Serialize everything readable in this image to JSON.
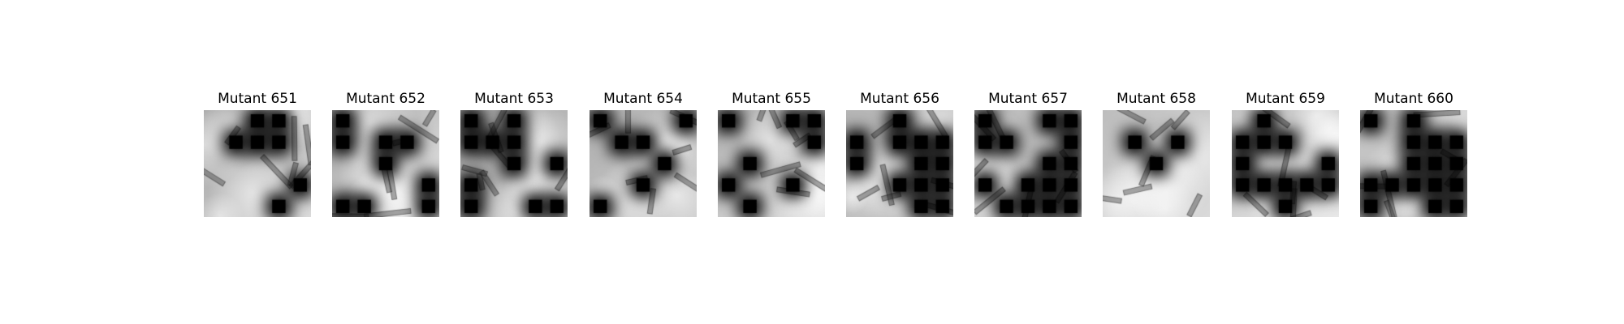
{
  "panels": [
    {
      "title": "Mutant 651",
      "blocks": [
        [
          1,
          1,
          0,
          0,
          1
        ],
        [
          1,
          0,
          0,
          0,
          1
        ],
        [
          1,
          1,
          1,
          1,
          1
        ],
        [
          1,
          1,
          1,
          1,
          0
        ],
        [
          1,
          1,
          1,
          0,
          1
        ]
      ],
      "seed": 651
    },
    {
      "title": "Mutant 652",
      "blocks": [
        [
          0,
          1,
          1,
          1,
          1
        ],
        [
          0,
          1,
          0,
          0,
          1
        ],
        [
          1,
          1,
          0,
          1,
          1
        ],
        [
          1,
          1,
          1,
          1,
          0
        ],
        [
          0,
          0,
          1,
          1,
          0
        ]
      ],
      "seed": 652
    },
    {
      "title": "Mutant 653",
      "blocks": [
        [
          0,
          1,
          0,
          1,
          1
        ],
        [
          0,
          0,
          0,
          1,
          1
        ],
        [
          1,
          1,
          0,
          1,
          0
        ],
        [
          0,
          1,
          1,
          1,
          1
        ],
        [
          0,
          1,
          1,
          0,
          0
        ]
      ],
      "seed": 653
    },
    {
      "title": "Mutant 654",
      "blocks": [
        [
          0,
          1,
          1,
          1,
          0
        ],
        [
          1,
          0,
          0,
          1,
          1
        ],
        [
          1,
          1,
          1,
          0,
          1
        ],
        [
          1,
          1,
          0,
          1,
          1
        ],
        [
          0,
          1,
          1,
          1,
          1
        ]
      ],
      "seed": 654
    },
    {
      "title": "Mutant 655",
      "blocks": [
        [
          0,
          1,
          1,
          0,
          0
        ],
        [
          1,
          1,
          1,
          1,
          0
        ],
        [
          1,
          0,
          1,
          1,
          1
        ],
        [
          0,
          1,
          1,
          0,
          1
        ],
        [
          1,
          0,
          1,
          1,
          1
        ]
      ],
      "seed": 655
    },
    {
      "title": "Mutant 656",
      "blocks": [
        [
          1,
          1,
          0,
          1,
          1
        ],
        [
          0,
          1,
          0,
          0,
          0
        ],
        [
          0,
          1,
          1,
          0,
          0
        ],
        [
          1,
          1,
          0,
          0,
          0
        ],
        [
          1,
          1,
          1,
          0,
          0
        ]
      ],
      "seed": 656
    },
    {
      "title": "Mutant 657",
      "blocks": [
        [
          0,
          1,
          1,
          0,
          0
        ],
        [
          0,
          0,
          1,
          1,
          0
        ],
        [
          1,
          1,
          1,
          0,
          0
        ],
        [
          0,
          1,
          0,
          0,
          0
        ],
        [
          1,
          0,
          0,
          0,
          0
        ]
      ],
      "seed": 657
    },
    {
      "title": "Mutant 658",
      "blocks": [
        [
          1,
          1,
          1,
          1,
          1
        ],
        [
          1,
          0,
          1,
          0,
          1
        ],
        [
          1,
          1,
          0,
          1,
          1
        ],
        [
          1,
          1,
          1,
          1,
          1
        ],
        [
          1,
          1,
          1,
          1,
          1
        ]
      ],
      "seed": 658
    },
    {
      "title": "Mutant 659",
      "blocks": [
        [
          1,
          0,
          1,
          1,
          1
        ],
        [
          0,
          0,
          0,
          1,
          1
        ],
        [
          0,
          1,
          1,
          1,
          0
        ],
        [
          0,
          0,
          0,
          0,
          0
        ],
        [
          1,
          1,
          0,
          1,
          1
        ]
      ],
      "seed": 659
    },
    {
      "title": "Mutant 660",
      "blocks": [
        [
          0,
          1,
          0,
          1,
          1
        ],
        [
          1,
          1,
          0,
          0,
          0
        ],
        [
          1,
          1,
          0,
          0,
          0
        ],
        [
          0,
          0,
          0,
          0,
          0
        ],
        [
          0,
          1,
          1,
          0,
          0
        ]
      ],
      "seed": 660
    }
  ]
}
